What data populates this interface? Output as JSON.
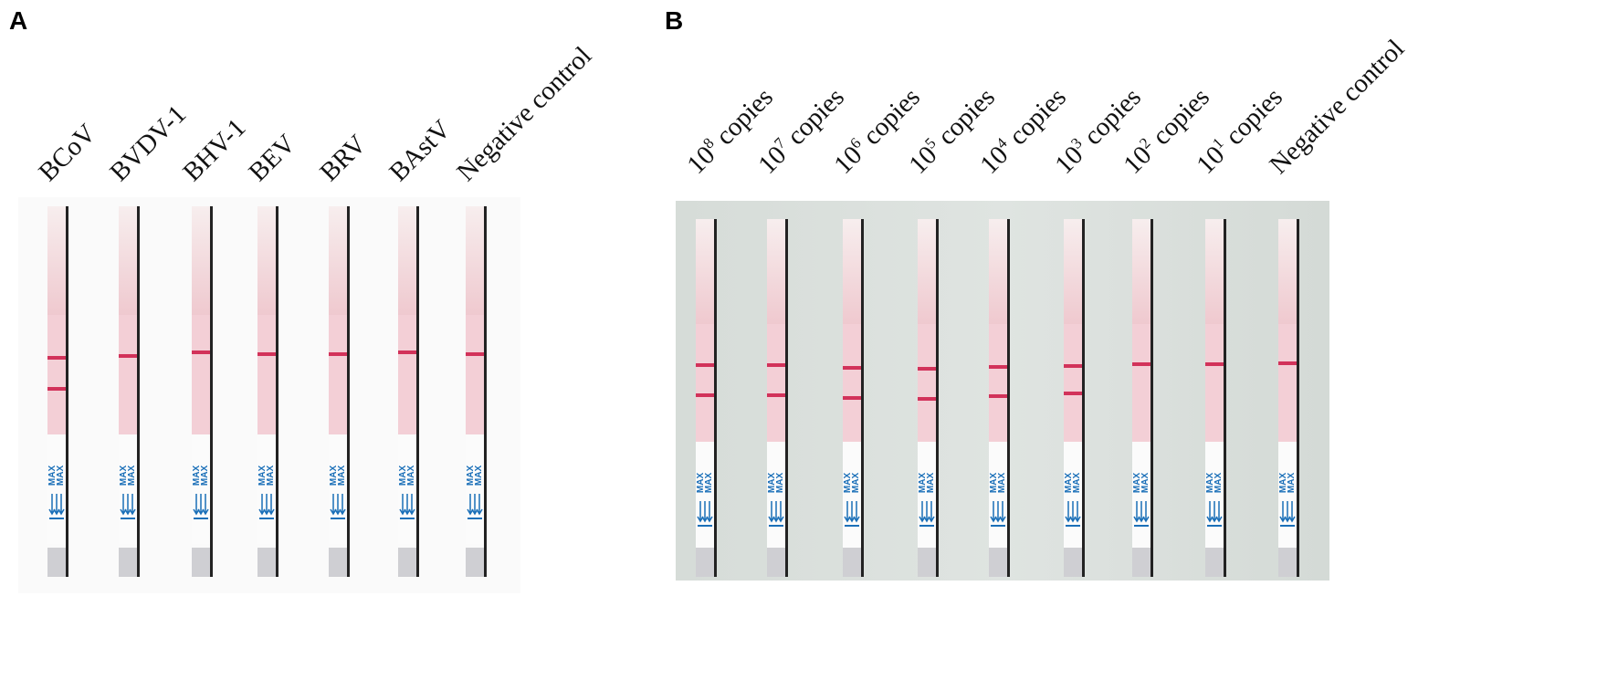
{
  "panels": [
    {
      "label": "A",
      "lanes": [
        {
          "text": "BCoV"
        },
        {
          "text": "BVDV-1"
        },
        {
          "text": "BHV-1"
        },
        {
          "text": "BEV"
        },
        {
          "text": "BRV"
        },
        {
          "text": "BAstV"
        },
        {
          "text": "Negative control"
        }
      ]
    },
    {
      "label": "B",
      "lanes": [
        {
          "text": "10",
          "sup": "8",
          "rest": " copies"
        },
        {
          "text": "10",
          "sup": "7",
          "rest": " copies"
        },
        {
          "text": "10",
          "sup": "6",
          "rest": " copies"
        },
        {
          "text": "10",
          "sup": "5",
          "rest": " copies"
        },
        {
          "text": "10",
          "sup": "4",
          "rest": " copies"
        },
        {
          "text": "10",
          "sup": "3",
          "rest": " copies"
        },
        {
          "text": "10",
          "sup": "2",
          "rest": " copies"
        },
        {
          "text": "10",
          "sup": "1",
          "rest": " copies"
        },
        {
          "text": "Negative control"
        }
      ]
    }
  ],
  "strip_marking": "MAX"
}
